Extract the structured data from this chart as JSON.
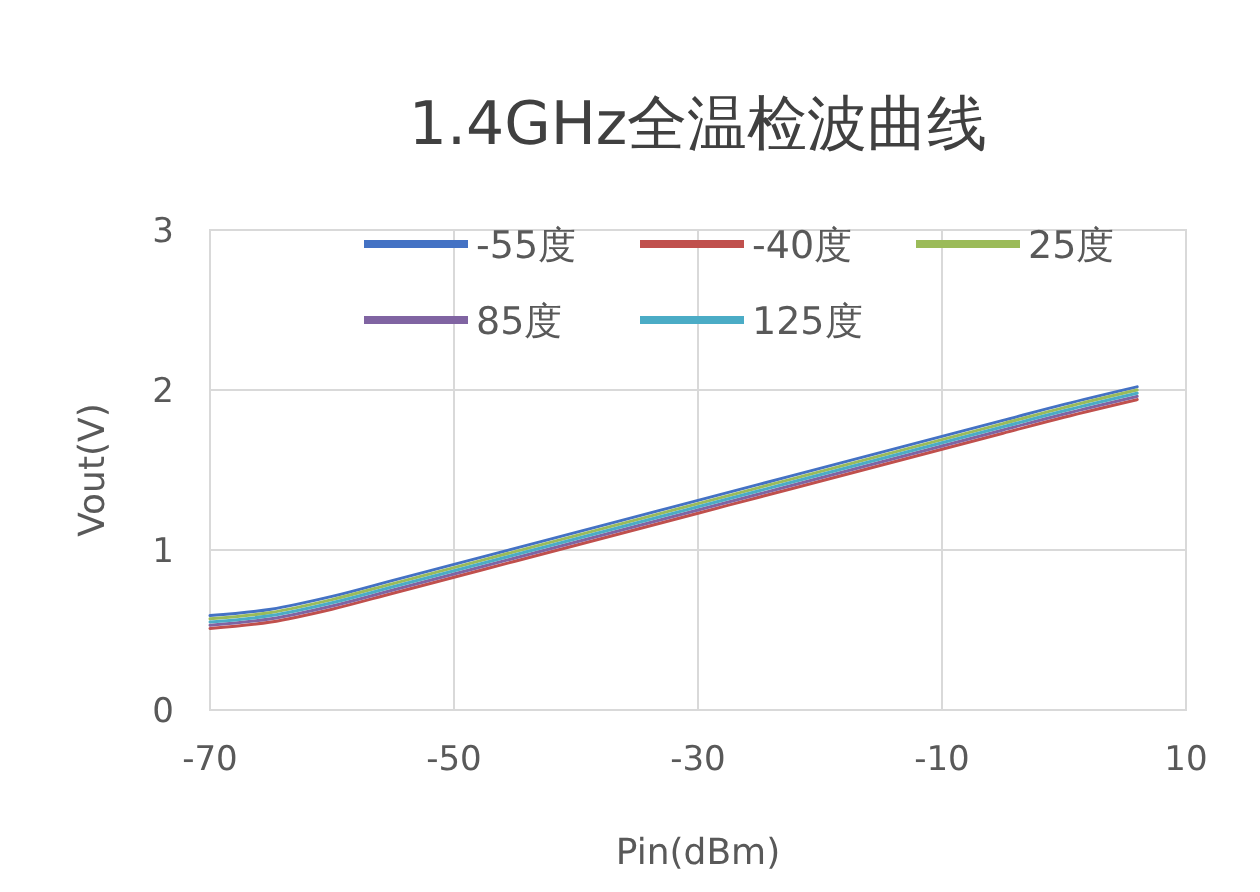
{
  "chart_data": {
    "type": "line",
    "title": "1.4GHz全温检波曲线",
    "xlabel": "Pin(dBm)",
    "ylabel": "Vout(V)",
    "x": [
      -70,
      -65,
      -60,
      -55,
      -50,
      -45,
      -40,
      -35,
      -30,
      -25,
      -20,
      -15,
      -10,
      -5,
      0,
      6
    ],
    "series": [
      {
        "name": "-55度",
        "color": "#4472c4",
        "values": [
          0.59,
          0.63,
          0.71,
          0.81,
          0.91,
          1.01,
          1.11,
          1.21,
          1.31,
          1.41,
          1.51,
          1.61,
          1.71,
          1.81,
          1.91,
          2.02
        ]
      },
      {
        "name": "-40度",
        "color": "#c0504d",
        "values": [
          0.51,
          0.55,
          0.63,
          0.73,
          0.83,
          0.93,
          1.03,
          1.13,
          1.23,
          1.33,
          1.43,
          1.53,
          1.63,
          1.73,
          1.83,
          1.94
        ]
      },
      {
        "name": "25度",
        "color": "#9bbb59",
        "values": [
          0.57,
          0.61,
          0.69,
          0.79,
          0.89,
          0.99,
          1.09,
          1.19,
          1.29,
          1.39,
          1.49,
          1.59,
          1.69,
          1.79,
          1.89,
          2.0
        ]
      },
      {
        "name": "85度",
        "color": "#8064a2",
        "values": [
          0.53,
          0.57,
          0.65,
          0.75,
          0.85,
          0.95,
          1.05,
          1.15,
          1.25,
          1.35,
          1.45,
          1.55,
          1.65,
          1.75,
          1.85,
          1.96
        ]
      },
      {
        "name": "125度",
        "color": "#4bacc6",
        "values": [
          0.55,
          0.59,
          0.67,
          0.77,
          0.87,
          0.97,
          1.07,
          1.17,
          1.27,
          1.37,
          1.47,
          1.57,
          1.67,
          1.77,
          1.87,
          1.98
        ]
      }
    ],
    "xlim": [
      -70,
      10
    ],
    "xticks": [
      -70,
      -50,
      -30,
      -10,
      10
    ],
    "ylim": [
      0,
      3
    ],
    "yticks": [
      0,
      1,
      2,
      3
    ],
    "grid": true,
    "legend": "top",
    "marker": "none",
    "line_style": "solid"
  }
}
